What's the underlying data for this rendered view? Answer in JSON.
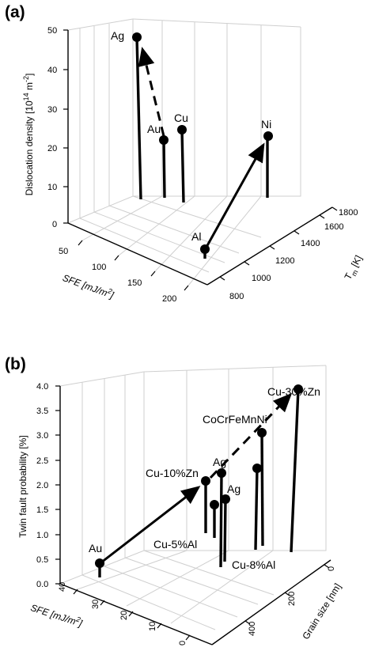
{
  "chart_data": [
    {
      "type": "scatter",
      "panel_label": "(a)",
      "zlabel": "Dislocation density [10",
      "zlabel_exp": "14",
      "zlabel_unit": " m",
      "zlabel_exp2": "-2",
      "zlabel_close": "]",
      "xlabel": "SFE [mJ/m",
      "xlabel_exp": "2",
      "xlabel_close": "]",
      "ylabel": "T",
      "ylabel_sub": "m",
      "ylabel_unit": " [K]",
      "zlim": [
        0,
        50
      ],
      "xlim": [
        0,
        200
      ],
      "ylim": [
        800,
        1800
      ],
      "z_ticks": [
        "0",
        "10",
        "20",
        "30",
        "40",
        "50"
      ],
      "x_ticks": [
        "50",
        "100",
        "150",
        "200"
      ],
      "y_ticks": [
        "800",
        "1000",
        "1200",
        "1400",
        "1600",
        "1800"
      ],
      "points": [
        {
          "label": "Ag",
          "sfe": 16,
          "tm": 1235,
          "value": 48
        },
        {
          "label": "Au",
          "sfe": 45,
          "tm": 1337,
          "value": 21
        },
        {
          "label": "Cu",
          "sfe": 45,
          "tm": 1358,
          "value": 24
        },
        {
          "label": "Al",
          "sfe": 166,
          "tm": 933,
          "value": 1
        },
        {
          "label": "Ni",
          "sfe": 125,
          "tm": 1728,
          "value": 22
        }
      ],
      "arrows": [
        {
          "from": "Al",
          "to": "Ni",
          "style": "solid"
        },
        {
          "from": "Au",
          "to": "Ag",
          "style": "dashed"
        }
      ]
    },
    {
      "type": "scatter",
      "panel_label": "(b)",
      "zlabel": "Twin fault probability [%]",
      "xlabel": "SFE [mJ/m",
      "xlabel_exp": "2",
      "xlabel_close": "]",
      "ylabel": "Grain size [nm]",
      "zlim": [
        0,
        4
      ],
      "xlim": [
        0,
        40
      ],
      "ylim": [
        0,
        500
      ],
      "z_ticks": [
        "0.0",
        "0.5",
        "1.0",
        "1.5",
        "2.0",
        "2.5",
        "3.0",
        "3.5",
        "4.0"
      ],
      "x_ticks": [
        "40",
        "30",
        "20",
        "10",
        "0"
      ],
      "y_ticks": [
        "0",
        "200",
        "400"
      ],
      "points": [
        {
          "label": "Au",
          "sfe": 33,
          "grain": 420,
          "value": 0.4
        },
        {
          "label": "Cu-10%Zn",
          "sfe": 20,
          "grain": 150,
          "value": 1.65
        },
        {
          "label": "Ag",
          "sfe": 16,
          "grain": 200,
          "value": 1.95
        },
        {
          "label": "Ag",
          "sfe": 16,
          "grain": 320,
          "value": 1.4
        },
        {
          "label": "Cu-5%Al",
          "sfe": 21,
          "grain": 130,
          "value": 1.05
        },
        {
          "label": "CoCrFeMnNi",
          "sfe": 20,
          "grain": 45,
          "value": 2.6
        },
        {
          "label": "Cu-8%Al",
          "sfe": 10,
          "grain": 90,
          "value": 1.65
        },
        {
          "label": "Cu-30%Zn",
          "sfe": 7,
          "grain": 50,
          "value": 3.65
        },
        {
          "label": "",
          "sfe": 25,
          "grain": 300,
          "value": 1.05
        }
      ],
      "arrows": [
        {
          "from": "Au",
          "to": "Cu-10%Zn",
          "style": "solid"
        },
        {
          "from": "Cu-10%Zn",
          "to": "Cu-30%Zn",
          "style": "dashed"
        }
      ]
    }
  ]
}
